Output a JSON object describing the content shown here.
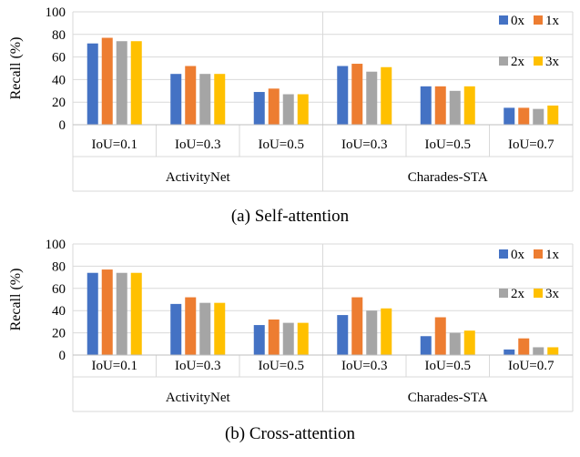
{
  "chart_data": [
    {
      "type": "bar",
      "caption": "(a) Self-attention",
      "ylabel": "Recall (%)",
      "ylim": [
        0,
        100
      ],
      "yticks": [
        "0",
        "20",
        "40",
        "60",
        "80",
        "100"
      ],
      "grid": true,
      "legend_position": "top-right",
      "groups": [
        {
          "name": "ActivityNet",
          "categories": [
            "IoU=0.1",
            "IoU=0.3",
            "IoU=0.5"
          ]
        },
        {
          "name": "Charades-STA",
          "categories": [
            "IoU=0.3",
            "IoU=0.5",
            "IoU=0.7"
          ]
        }
      ],
      "series": [
        {
          "name": "0x",
          "color": "#4472C4",
          "values": [
            72,
            45,
            29,
            52,
            34,
            15
          ]
        },
        {
          "name": "1x",
          "color": "#ED7D31",
          "values": [
            77,
            52,
            32,
            54,
            34,
            15
          ]
        },
        {
          "name": "2x",
          "color": "#A5A5A5",
          "values": [
            74,
            45,
            27,
            47,
            30,
            14
          ]
        },
        {
          "name": "3x",
          "color": "#FFC000",
          "values": [
            74,
            45,
            27,
            51,
            34,
            17
          ]
        }
      ]
    },
    {
      "type": "bar",
      "caption": "(b) Cross-attention",
      "ylabel": "Recall (%)",
      "ylim": [
        0,
        100
      ],
      "yticks": [
        "0",
        "20",
        "40",
        "60",
        "80",
        "100"
      ],
      "grid": true,
      "legend_position": "top-right",
      "groups": [
        {
          "name": "ActivityNet",
          "categories": [
            "IoU=0.1",
            "IoU=0.3",
            "IoU=0.5"
          ]
        },
        {
          "name": "Charades-STA",
          "categories": [
            "IoU=0.3",
            "IoU=0.5",
            "IoU=0.7"
          ]
        }
      ],
      "series": [
        {
          "name": "0x",
          "color": "#4472C4",
          "values": [
            74,
            46,
            27,
            36,
            17,
            5
          ]
        },
        {
          "name": "1x",
          "color": "#ED7D31",
          "values": [
            77,
            52,
            32,
            52,
            34,
            15
          ]
        },
        {
          "name": "2x",
          "color": "#A5A5A5",
          "values": [
            74,
            47,
            29,
            40,
            20,
            7
          ]
        },
        {
          "name": "3x",
          "color": "#FFC000",
          "values": [
            74,
            47,
            29,
            42,
            22,
            7
          ]
        }
      ]
    }
  ]
}
